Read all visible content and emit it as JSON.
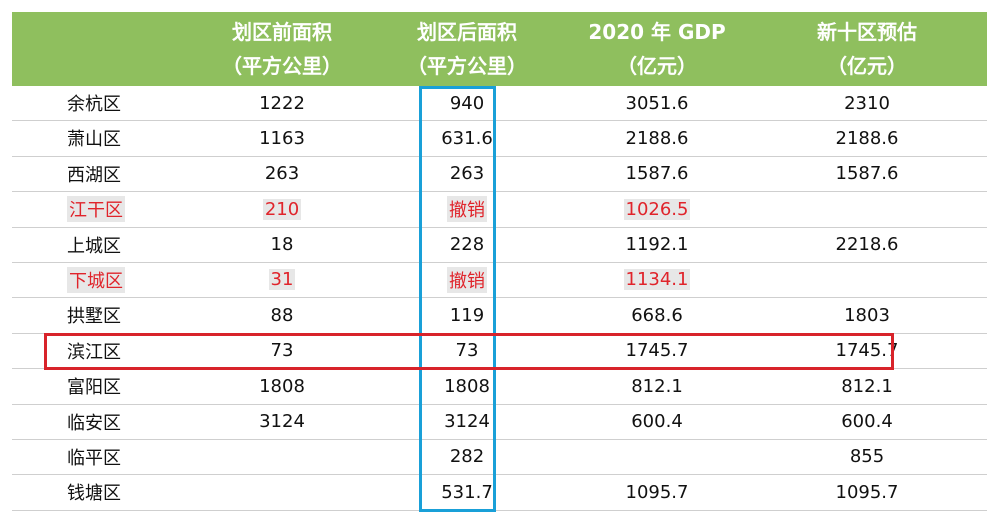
{
  "header": {
    "col1_line1": "划区前面积",
    "col1_line2": "（平方公里）",
    "col2_line1": "划区后面积",
    "col2_line2": "（平方公里）",
    "col3_line1": "2020 年 GDP",
    "col3_line2": "（亿元）",
    "col4_line1": "新十区预估",
    "col4_line2": "（亿元）"
  },
  "rows": [
    {
      "name": "余杭区",
      "before": "1222",
      "after": "940",
      "gdp": "3051.6",
      "est": "2310"
    },
    {
      "name": "萧山区",
      "before": "1163",
      "after": "631.6",
      "gdp": "2188.6",
      "est": "2188.6"
    },
    {
      "name": "西湖区",
      "before": "263",
      "after": "263",
      "gdp": "1587.6",
      "est": "1587.6"
    },
    {
      "name": "江干区",
      "before": "210",
      "after": "撤销",
      "gdp": "1026.5",
      "est": ""
    },
    {
      "name": "上城区",
      "before": "18",
      "after": "228",
      "gdp": "1192.1",
      "est": "2218.6"
    },
    {
      "name": "下城区",
      "before": "31",
      "after": "撤销",
      "gdp": "1134.1",
      "est": ""
    },
    {
      "name": "拱墅区",
      "before": "88",
      "after": "119",
      "gdp": "668.6",
      "est": "1803"
    },
    {
      "name": "滨江区",
      "before": "73",
      "after": "73",
      "gdp": "1745.7",
      "est": "1745.7"
    },
    {
      "name": "富阳区",
      "before": "1808",
      "after": "1808",
      "gdp": "812.1",
      "est": "812.1"
    },
    {
      "name": "临安区",
      "before": "3124",
      "after": "3124",
      "gdp": "600.4",
      "est": "600.4"
    },
    {
      "name": "临平区",
      "before": "",
      "after": "282",
      "gdp": "",
      "est": "855"
    },
    {
      "name": "钱塘区",
      "before": "",
      "after": "531.7",
      "gdp": "1095.7",
      "est": "1095.7"
    }
  ],
  "colors": {
    "header_bg": "#8fbf5e",
    "revoked_text": "#e0242b",
    "blue_box": "#19a0d8",
    "red_box": "#d8232a"
  }
}
